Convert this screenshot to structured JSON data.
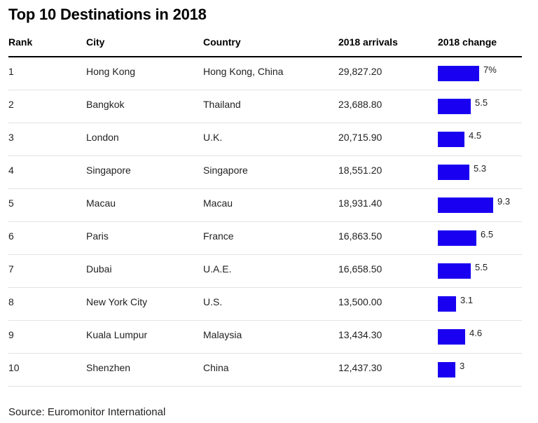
{
  "chart_data": {
    "type": "table",
    "title": "Top 10 Destinations in 2018",
    "columns": [
      "Rank",
      "City",
      "Country",
      "2018 arrivals",
      "2018 change"
    ],
    "rows": [
      {
        "rank": "1",
        "city": "Hong Kong",
        "country": "Hong Kong, China",
        "arrivals": "29,827.20",
        "change": 7,
        "change_label": "7%"
      },
      {
        "rank": "2",
        "city": "Bangkok",
        "country": "Thailand",
        "arrivals": "23,688.80",
        "change": 5.5,
        "change_label": "5.5"
      },
      {
        "rank": "3",
        "city": "London",
        "country": "U.K.",
        "arrivals": "20,715.90",
        "change": 4.5,
        "change_label": "4.5"
      },
      {
        "rank": "4",
        "city": "Singapore",
        "country": "Singapore",
        "arrivals": "18,551.20",
        "change": 5.3,
        "change_label": "5.3"
      },
      {
        "rank": "5",
        "city": "Macau",
        "country": "Macau",
        "arrivals": "18,931.40",
        "change": 9.3,
        "change_label": "9.3"
      },
      {
        "rank": "6",
        "city": "Paris",
        "country": "France",
        "arrivals": "16,863.50",
        "change": 6.5,
        "change_label": "6.5"
      },
      {
        "rank": "7",
        "city": "Dubai",
        "country": "U.A.E.",
        "arrivals": "16,658.50",
        "change": 5.5,
        "change_label": "5.5"
      },
      {
        "rank": "8",
        "city": "New York City",
        "country": "U.S.",
        "arrivals": "13,500.00",
        "change": 3.1,
        "change_label": "3.1"
      },
      {
        "rank": "9",
        "city": "Kuala Lumpur",
        "country": "Malaysia",
        "arrivals": "13,434.30",
        "change": 4.6,
        "change_label": "4.6"
      },
      {
        "rank": "10",
        "city": "Shenzhen",
        "country": "China",
        "arrivals": "12,437.30",
        "change": 3,
        "change_label": "3"
      }
    ],
    "bar_max": 9.3,
    "bar_color": "#1a00f0"
  },
  "source": "Source: Euromonitor International"
}
